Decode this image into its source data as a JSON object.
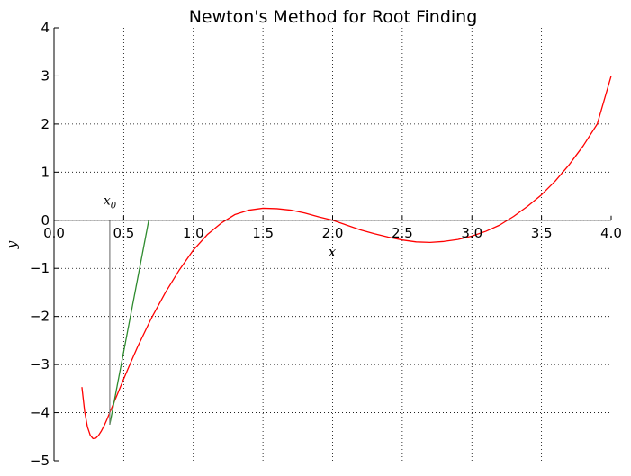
{
  "chart_data": {
    "type": "line",
    "title": "Newton's Method for Root Finding",
    "xlabel": "x",
    "ylabel": "y",
    "xlim": [
      0.0,
      4.0
    ],
    "ylim": [
      -5,
      4
    ],
    "grid": true,
    "x_ticks": [
      0.0,
      0.5,
      1.0,
      1.5,
      2.0,
      2.5,
      3.0,
      3.5,
      4.0
    ],
    "x_tick_labels": [
      "0.0",
      "0.5",
      "1.0",
      "1.5",
      "2.0",
      "2.5",
      "3.0",
      "3.5",
      "4.0"
    ],
    "y_ticks": [
      -5,
      -4,
      -3,
      -2,
      -1,
      0,
      1,
      2,
      3,
      4
    ],
    "y_tick_labels": [
      "−5",
      "−4",
      "−3",
      "−2",
      "−1",
      "0",
      "1",
      "2",
      "3",
      "4"
    ],
    "series": [
      {
        "role": "function",
        "color": "#ff0000",
        "x": [
          0.2,
          0.22,
          0.24,
          0.26,
          0.28,
          0.3,
          0.32,
          0.34,
          0.36,
          0.38,
          0.4,
          0.45,
          0.5,
          0.55,
          0.6,
          0.7,
          0.8,
          0.9,
          1.0,
          1.1,
          1.2,
          1.3,
          1.4,
          1.5,
          1.6,
          1.7,
          1.8,
          1.9,
          2.0,
          2.1,
          2.2,
          2.3,
          2.4,
          2.5,
          2.6,
          2.7,
          2.8,
          2.9,
          3.0,
          3.1,
          3.2,
          3.3,
          3.4,
          3.5,
          3.6,
          3.7,
          3.8,
          3.9,
          4.0
        ],
        "y": [
          -3.47,
          -3.98,
          -4.3,
          -4.47,
          -4.54,
          -4.53,
          -4.47,
          -4.38,
          -4.27,
          -4.14,
          -4.0,
          -3.65,
          -3.3,
          -2.96,
          -2.63,
          -2.03,
          -1.5,
          -1.03,
          -0.62,
          -0.3,
          -0.06,
          0.12,
          0.21,
          0.25,
          0.24,
          0.21,
          0.15,
          0.07,
          0.0,
          -0.1,
          -0.2,
          -0.28,
          -0.35,
          -0.41,
          -0.45,
          -0.46,
          -0.44,
          -0.4,
          -0.33,
          -0.23,
          -0.1,
          0.08,
          0.29,
          0.53,
          0.82,
          1.16,
          1.55,
          2.0,
          3.0
        ]
      },
      {
        "role": "tangent",
        "color": "#2e8b2e",
        "x": [
          0.4,
          0.68
        ],
        "y": [
          -4.25,
          0.0
        ]
      },
      {
        "role": "vertical",
        "color": "#888888",
        "x": [
          0.4,
          0.4
        ],
        "y": [
          0.0,
          -4.25
        ]
      }
    ],
    "annotations": [
      {
        "text": "x",
        "subscript": "0",
        "x": 0.4,
        "y": 0.25
      }
    ]
  }
}
